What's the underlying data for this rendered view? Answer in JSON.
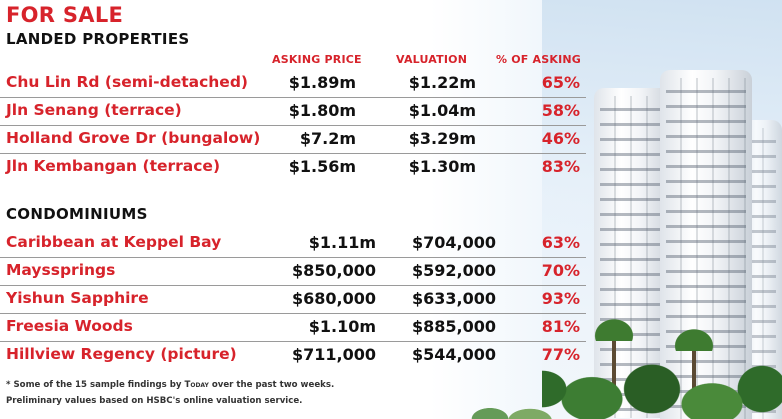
{
  "title": "FOR SALE",
  "landed": {
    "heading": "LANDED PROPERTIES",
    "columns": {
      "asking": "ASKING PRICE",
      "valuation": "VALUATION",
      "percent": "% OF ASKING"
    },
    "rows": [
      {
        "name": "Chu Lin Rd (semi-detached)",
        "asking": "$1.89m",
        "valuation": "$1.22m",
        "percent": "65%"
      },
      {
        "name": "Jln Senang (terrace)",
        "asking": "$1.80m",
        "valuation": "$1.04m",
        "percent": "58%"
      },
      {
        "name": "Holland Grove Dr (bungalow)",
        "asking": "$7.2m",
        "valuation": "$3.29m",
        "percent": "46%"
      },
      {
        "name": "Jln Kembangan (terrace)",
        "asking": "$1.56m",
        "valuation": "$1.30m",
        "percent": "83%"
      }
    ]
  },
  "condos": {
    "heading": "CONDOMINIUMS",
    "rows": [
      {
        "name": "Caribbean at Keppel Bay",
        "asking": "$1.11m",
        "valuation": "$704,000",
        "percent": "63%"
      },
      {
        "name": "Mayssprings",
        "asking": "$850,000",
        "valuation": "$592,000",
        "percent": "70%"
      },
      {
        "name": "Yishun Sapphire",
        "asking": "$680,000",
        "valuation": "$633,000",
        "percent": "93%"
      },
      {
        "name": "Freesia Woods",
        "asking": "$1.10m",
        "valuation": "$885,000",
        "percent": "81%"
      },
      {
        "name": "Hillview Regency (picture)",
        "asking": "$711,000",
        "valuation": "$544,000",
        "percent": "77%"
      }
    ]
  },
  "footnotes": {
    "line1_prefix": "* Some of the 15 sample findings by ",
    "line1_brand": "Today",
    "line1_suffix": " over the past two weeks.",
    "line2": "Preliminary values based on HSBC's online valuation service."
  },
  "colors": {
    "accent_red": "#d7232b",
    "text_dark": "#111111",
    "rule_gray": "#9a9a9a"
  }
}
